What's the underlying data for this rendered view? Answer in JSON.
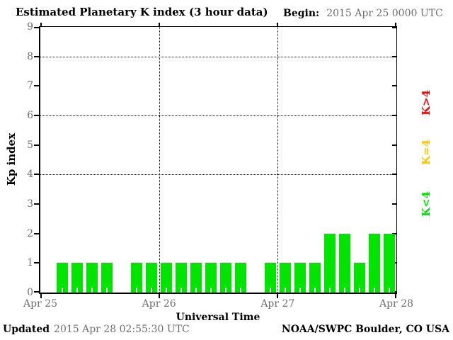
{
  "chart_data": {
    "type": "bar",
    "title": "Estimated Planetary K index (3 hour data)",
    "begin": {
      "label": "Begin:",
      "value": "2015 Apr 25 0000 UTC"
    },
    "ylabel": "Kp index",
    "xlabel": "Universal Time",
    "ylim": [
      0,
      9
    ],
    "yticks": [
      "0",
      "1",
      "2",
      "3",
      "4",
      "5",
      "6",
      "7",
      "8",
      "9"
    ],
    "gridlines_y": [
      4,
      6,
      8
    ],
    "day_labels": [
      "Apr 25",
      "Apr 26",
      "Apr 27",
      "Apr 28"
    ],
    "bars_per_day": 8,
    "bar_period_hours": 3,
    "values": [
      0,
      1,
      1,
      1,
      1,
      0,
      1,
      1,
      1,
      1,
      1,
      1,
      1,
      1,
      0,
      1,
      1,
      1,
      1,
      2,
      2,
      1,
      2,
      2
    ],
    "bar_color": "#00e400",
    "grid_on": true,
    "legend_position": "right-rotated",
    "legend": [
      {
        "label": "K>4",
        "color": "#ff0000"
      },
      {
        "label": "K=4",
        "color": "#ffc600"
      },
      {
        "label": "K<4",
        "color": "#00e400"
      }
    ]
  },
  "footer": {
    "updated_label": "Updated",
    "updated_value": "2015 Apr 28 02:55:30 UTC",
    "credit": "NOAA/SWPC Boulder, CO USA"
  }
}
